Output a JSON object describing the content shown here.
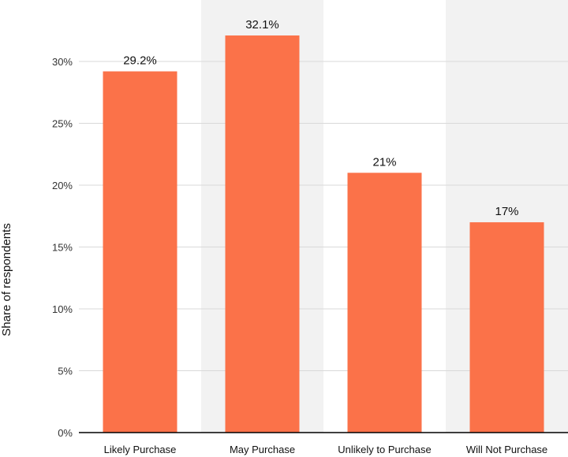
{
  "chart_data": {
    "type": "bar",
    "categories": [
      "Likely Purchase",
      "May Purchase",
      "Unlikely to Purchase",
      "Will Not Purchase"
    ],
    "values": [
      29.2,
      32.1,
      21,
      17
    ],
    "data_labels": [
      "29.2%",
      "32.1%",
      "21%",
      "17%"
    ],
    "title": "",
    "xlabel": "",
    "ylabel": "Share of respondents",
    "ylim": [
      0,
      35
    ],
    "yticks": [
      0,
      5,
      10,
      15,
      20,
      25,
      30
    ],
    "ytick_labels": [
      "0%",
      "5%",
      "10%",
      "15%",
      "20%",
      "25%",
      "30%"
    ],
    "grid": true,
    "alternating_band_shading": true,
    "colors": {
      "bar": "#fb7249",
      "band": "#f2f2f2",
      "grid": "#d9d9d9",
      "axis": "#000000"
    }
  }
}
